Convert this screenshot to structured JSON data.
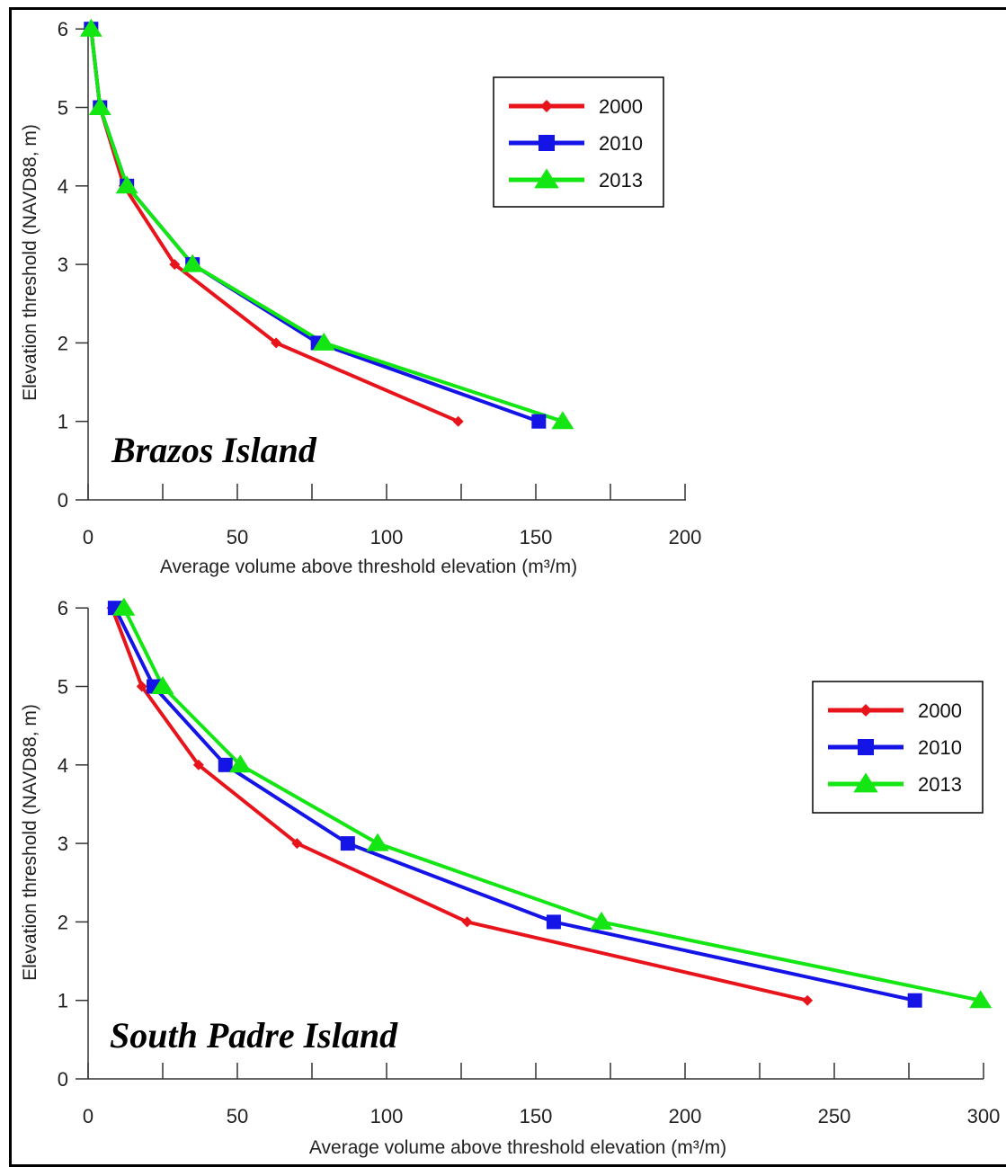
{
  "chart_data": [
    {
      "type": "line",
      "annotation": "Brazos Island",
      "xlabel": "Average volume above threshold elevation (m³/m)",
      "ylabel": "Elevation threshold (NAVD88, m)",
      "xlim": [
        0,
        200
      ],
      "ylim": [
        0,
        6
      ],
      "x_ticks": [
        0,
        50,
        100,
        150,
        200
      ],
      "y_ticks": [
        0,
        1,
        2,
        3,
        4,
        5,
        6
      ],
      "legend_position": "top-right",
      "series": [
        {
          "name": "2000",
          "color": "#e8141c",
          "marker": "diamond",
          "points": [
            [
              124,
              1
            ],
            [
              63,
              2
            ],
            [
              29,
              3
            ],
            [
              12,
              4
            ],
            [
              4,
              5
            ],
            [
              1,
              6
            ]
          ]
        },
        {
          "name": "2010",
          "color": "#1414e6",
          "marker": "square",
          "points": [
            [
              151,
              1
            ],
            [
              77,
              2
            ],
            [
              35,
              3
            ],
            [
              13,
              4
            ],
            [
              4,
              5
            ],
            [
              1,
              6
            ]
          ]
        },
        {
          "name": "2013",
          "color": "#14e614",
          "marker": "triangle",
          "points": [
            [
              159,
              1
            ],
            [
              79,
              2
            ],
            [
              35,
              3
            ],
            [
              13,
              4
            ],
            [
              4,
              5
            ],
            [
              1,
              6
            ]
          ]
        }
      ]
    },
    {
      "type": "line",
      "annotation": "South Padre Island",
      "xlabel": "Average volume above threshold elevation (m³/m)",
      "ylabel": "Elevation threshold (NAVD88, m)",
      "xlim": [
        0,
        300
      ],
      "ylim": [
        0,
        6
      ],
      "x_ticks": [
        0,
        50,
        100,
        150,
        200,
        250,
        300
      ],
      "y_ticks": [
        0,
        1,
        2,
        3,
        4,
        5,
        6
      ],
      "legend_position": "top-right",
      "series": [
        {
          "name": "2000",
          "color": "#e8141c",
          "marker": "diamond",
          "points": [
            [
              241,
              1
            ],
            [
              127,
              2
            ],
            [
              70,
              3
            ],
            [
              37,
              4
            ],
            [
              18,
              5
            ],
            [
              8,
              6
            ]
          ]
        },
        {
          "name": "2010",
          "color": "#1414e6",
          "marker": "square",
          "points": [
            [
              277,
              1
            ],
            [
              156,
              2
            ],
            [
              87,
              3
            ],
            [
              46,
              4
            ],
            [
              22,
              5
            ],
            [
              9,
              6
            ]
          ]
        },
        {
          "name": "2013",
          "color": "#14e614",
          "marker": "triangle",
          "points": [
            [
              299,
              1
            ],
            [
              172,
              2
            ],
            [
              97,
              3
            ],
            [
              51,
              4
            ],
            [
              25,
              5
            ],
            [
              12,
              6
            ]
          ]
        }
      ]
    }
  ]
}
